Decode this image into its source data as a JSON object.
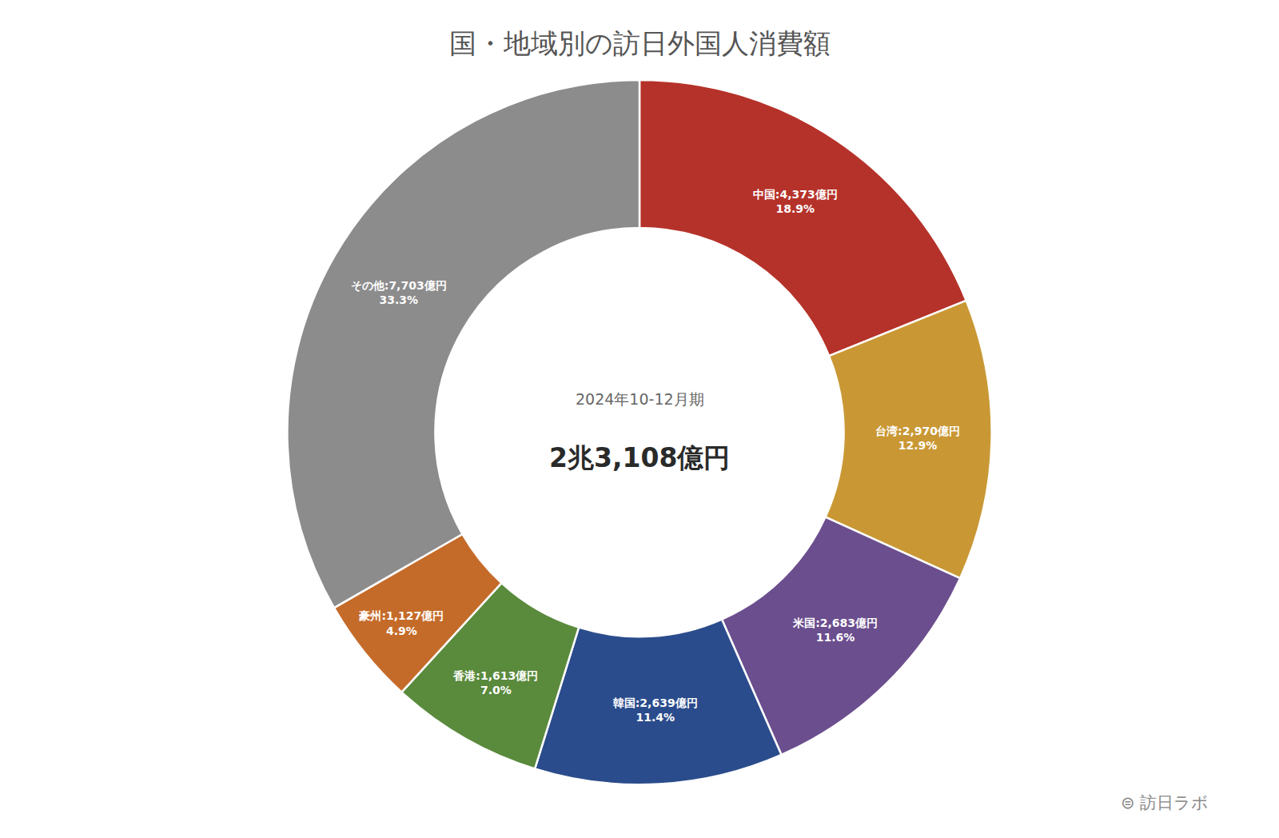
{
  "chart_data": {
    "type": "pie",
    "title": "国・地域別の訪日外国人消費額",
    "values": [
      18.9,
      12.9,
      11.6,
      11.4,
      7.0,
      4.9,
      33.3
    ],
    "value_labels": [
      "中国:4,373億円\n18.9%",
      "台湾:2,970億円\n12.9%",
      "米国:2,683億円\n11.6%",
      "韓国:2,639億円\n11.4%",
      "香港:1,613億円\n7.0%",
      "豪州:1,127億円\n4.9%",
      "その他:7,703億円\n33.3%"
    ],
    "colors": [
      "#B5322A",
      "#C99835",
      "#6B4E8E",
      "#2B4C8C",
      "#5A8A3C",
      "#C56B2A",
      "#8C8C8C"
    ],
    "data_labels": true,
    "annotations": [
      "2024年10-12月期",
      "2兆3,108億円",
      "⊜ 訪日ラボ"
    ]
  }
}
